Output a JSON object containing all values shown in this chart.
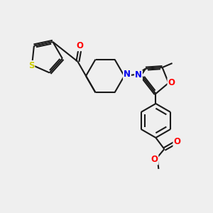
{
  "bg_color": "#efefef",
  "bond_color": "#1a1a1a",
  "atom_colors": {
    "O": "#ff0000",
    "N": "#0000ee",
    "S": "#cccc00"
  },
  "figsize": [
    3.0,
    3.0
  ],
  "dpi": 100
}
